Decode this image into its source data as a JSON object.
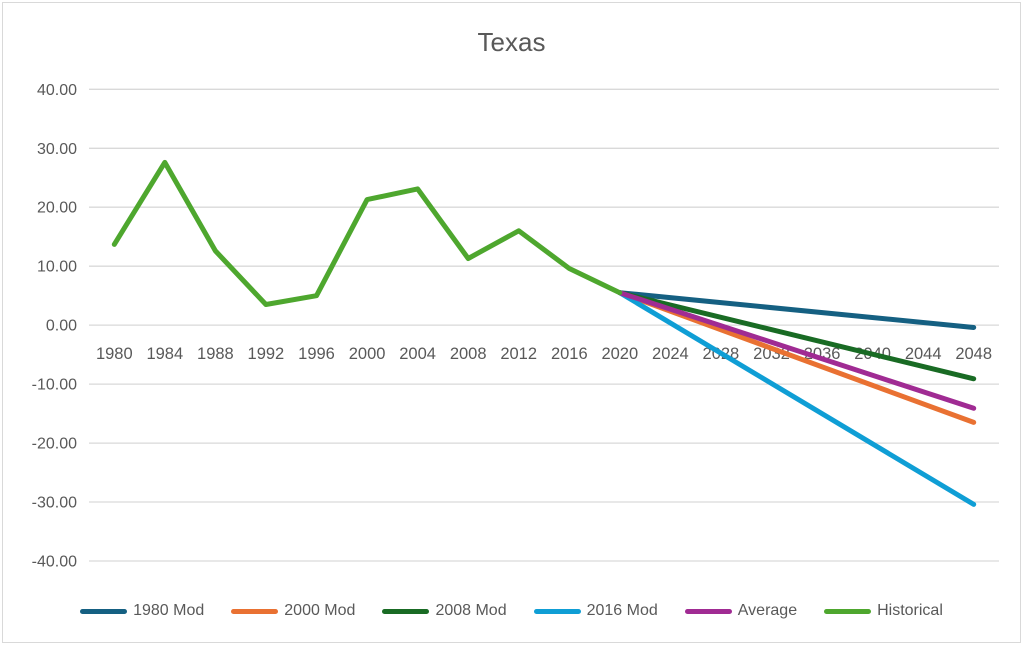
{
  "chart_data": {
    "type": "line",
    "title": "Texas",
    "categories": [
      1980,
      1984,
      1988,
      1992,
      1996,
      2000,
      2004,
      2008,
      2012,
      2016,
      2020,
      2024,
      2028,
      2032,
      2036,
      2040,
      2044,
      2048
    ],
    "x_step_years": 4,
    "ylim": [
      -40,
      40
    ],
    "y_tick_step": 10,
    "y_tick_labels": [
      "40.00",
      "30.00",
      "20.00",
      "10.00",
      "0.00",
      "-10.00",
      "-20.00",
      "-30.00",
      "-40.00"
    ],
    "grid": "horizontal",
    "legend_position": "bottom",
    "series": [
      {
        "name": "1980 Mod",
        "color": "#156082",
        "points": [
          {
            "x": 2020,
            "y": 5.5
          },
          {
            "x": 2048,
            "y": -0.4
          }
        ]
      },
      {
        "name": "2000 Mod",
        "color": "#E97132",
        "points": [
          {
            "x": 2020,
            "y": 5.5
          },
          {
            "x": 2048,
            "y": -16.5
          }
        ]
      },
      {
        "name": "2008 Mod",
        "color": "#196B24",
        "points": [
          {
            "x": 2020,
            "y": 5.5
          },
          {
            "x": 2048,
            "y": -9.1
          }
        ]
      },
      {
        "name": "2016 Mod",
        "color": "#0F9ED5",
        "points": [
          {
            "x": 2020,
            "y": 5.5
          },
          {
            "x": 2048,
            "y": -30.4
          }
        ]
      },
      {
        "name": "Average",
        "color": "#A02B93",
        "points": [
          {
            "x": 2020,
            "y": 5.5
          },
          {
            "x": 2048,
            "y": -14.1
          }
        ]
      },
      {
        "name": "Historical",
        "color": "#4EA72E",
        "points": [
          {
            "x": 1980,
            "y": 13.7
          },
          {
            "x": 1984,
            "y": 27.6
          },
          {
            "x": 1988,
            "y": 12.6
          },
          {
            "x": 1992,
            "y": 3.5
          },
          {
            "x": 1996,
            "y": 5.0
          },
          {
            "x": 2000,
            "y": 21.3
          },
          {
            "x": 2004,
            "y": 23.1
          },
          {
            "x": 2008,
            "y": 11.3
          },
          {
            "x": 2012,
            "y": 16.0
          },
          {
            "x": 2016,
            "y": 9.6
          },
          {
            "x": 2020,
            "y": 5.5
          }
        ]
      }
    ],
    "styles": {
      "title_color": "#595959",
      "axis_label_color": "#595959",
      "gridline_color": "#D9D9D9",
      "chart_border_color": "#D9D9D9",
      "background": "#FFFFFF",
      "line_width": 5
    }
  }
}
